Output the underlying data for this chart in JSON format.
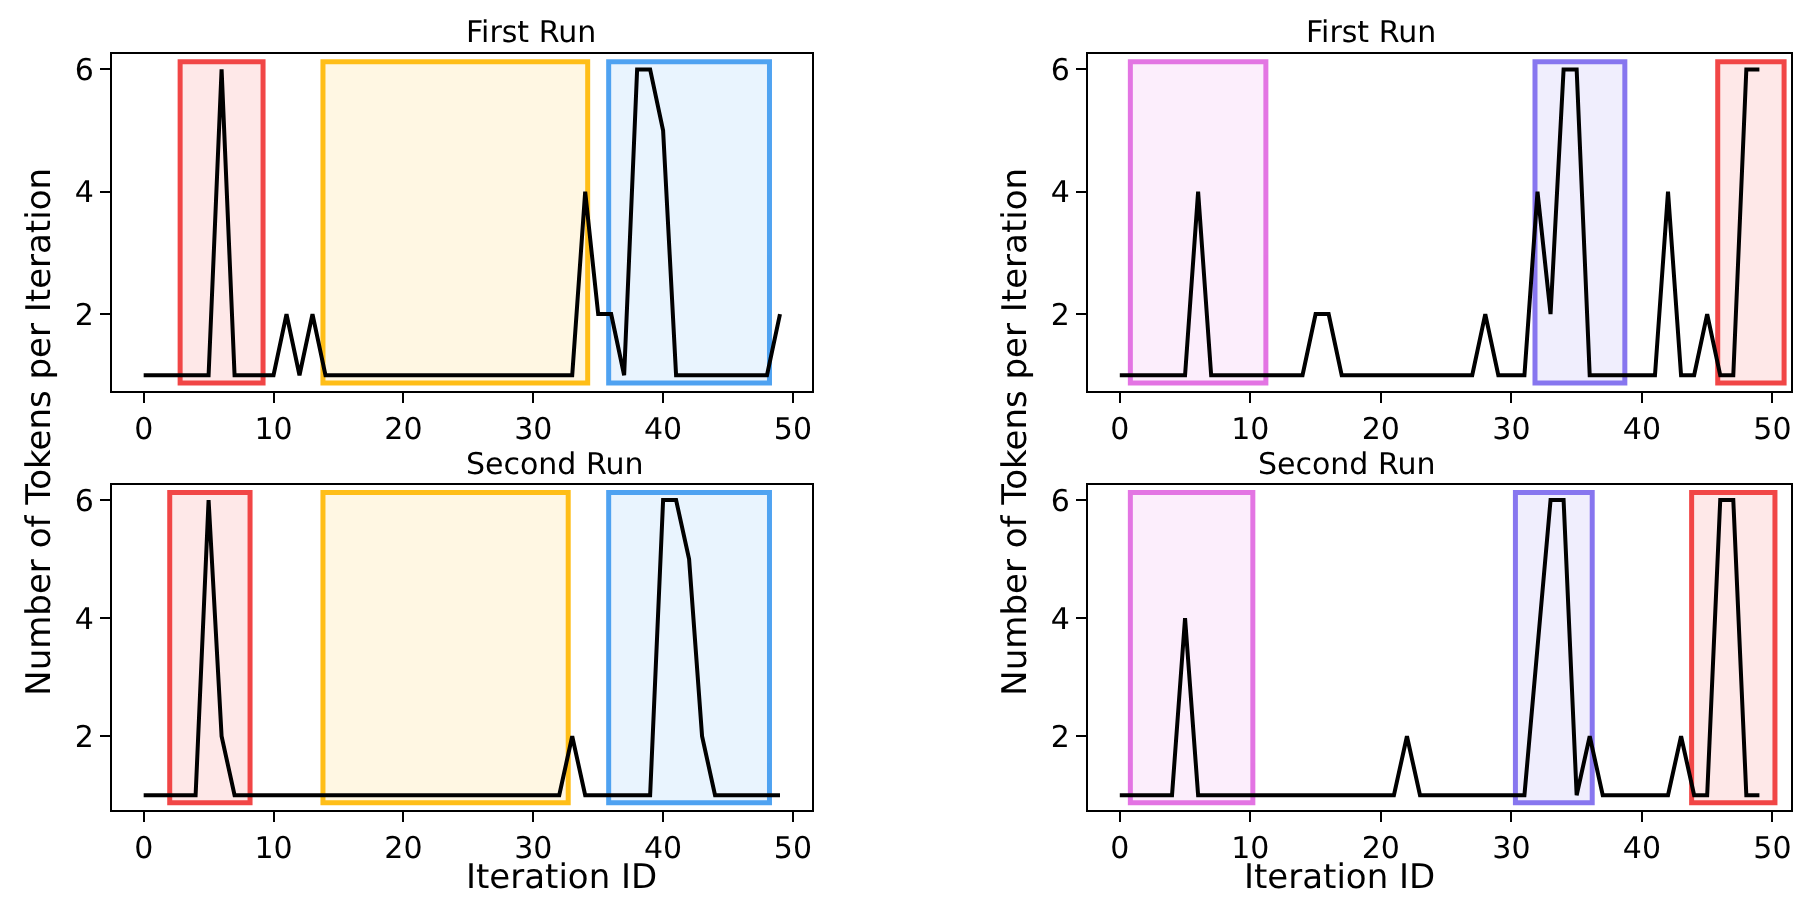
{
  "chart_data": [
    {
      "type": "line",
      "title": "First Run",
      "ylabel": "Number of Tokens per Iteration",
      "x": [
        0,
        1,
        2,
        3,
        4,
        5,
        6,
        7,
        8,
        9,
        10,
        11,
        12,
        13,
        14,
        15,
        16,
        17,
        18,
        19,
        20,
        21,
        22,
        23,
        24,
        25,
        26,
        27,
        28,
        29,
        30,
        31,
        32,
        33,
        34,
        35,
        36,
        37,
        38,
        39,
        40,
        41,
        42,
        43,
        44,
        45,
        46,
        47,
        48,
        49
      ],
      "xlim": [
        -2.45,
        51.45
      ],
      "xticks": [
        0,
        10,
        20,
        30,
        40,
        50
      ],
      "ylim": [
        0.75,
        6.25
      ],
      "yticks": [
        2,
        4,
        6
      ],
      "grid": false,
      "marker": "none",
      "line_style": "solid",
      "series": [
        {
          "color": "#000000",
          "values": [
            1,
            1,
            1,
            1,
            1,
            1,
            6,
            1,
            1,
            1,
            1,
            2,
            1,
            2,
            1,
            1,
            1,
            1,
            1,
            1,
            1,
            1,
            1,
            1,
            1,
            1,
            1,
            1,
            1,
            1,
            1,
            1,
            1,
            1,
            4,
            2,
            2,
            1,
            6,
            6,
            5,
            1,
            1,
            1,
            1,
            1,
            1,
            1,
            1,
            2
          ]
        }
      ],
      "bands": [
        {
          "axis": "x",
          "from": 3,
          "to": 9,
          "color": "#f03232"
        },
        {
          "axis": "x",
          "from": 14,
          "to": 34,
          "color": "#ffb700"
        },
        {
          "axis": "x",
          "from": 36,
          "to": 48,
          "color": "#3d99f0"
        }
      ]
    },
    {
      "type": "line",
      "title": "First Run",
      "ylabel": "Number of Tokens per Iteration",
      "x": [
        0,
        1,
        2,
        3,
        4,
        5,
        6,
        7,
        8,
        9,
        10,
        11,
        12,
        13,
        14,
        15,
        16,
        17,
        18,
        19,
        20,
        21,
        22,
        23,
        24,
        25,
        26,
        27,
        28,
        29,
        30,
        31,
        32,
        33,
        34,
        35,
        36,
        37,
        38,
        39,
        40,
        41,
        42,
        43,
        44,
        45,
        46,
        47,
        48,
        49
      ],
      "xlim": [
        -2.45,
        51.45
      ],
      "xticks": [
        0,
        10,
        20,
        30,
        40,
        50
      ],
      "ylim": [
        0.75,
        6.25
      ],
      "yticks": [
        2,
        4,
        6
      ],
      "grid": false,
      "marker": "none",
      "line_style": "solid",
      "series": [
        {
          "color": "#000000",
          "values": [
            1,
            1,
            1,
            1,
            1,
            1,
            4,
            1,
            1,
            1,
            1,
            1,
            1,
            1,
            1,
            2,
            2,
            1,
            1,
            1,
            1,
            1,
            1,
            1,
            1,
            1,
            1,
            1,
            2,
            1,
            1,
            1,
            4,
            2,
            6,
            6,
            1,
            1,
            1,
            1,
            1,
            1,
            4,
            1,
            1,
            2,
            1,
            1,
            6,
            6
          ]
        }
      ],
      "bands": [
        {
          "axis": "x",
          "from": 1,
          "to": 11,
          "color": "#e066e0"
        },
        {
          "axis": "x",
          "from": 32,
          "to": 38.5,
          "color": "#7b68ee"
        },
        {
          "axis": "x",
          "from": 46,
          "to": 50.7,
          "color": "#f03232"
        }
      ]
    },
    {
      "type": "line",
      "title": "Second Run",
      "xlabel": "Iteration ID",
      "x": [
        0,
        1,
        2,
        3,
        4,
        5,
        6,
        7,
        8,
        9,
        10,
        11,
        12,
        13,
        14,
        15,
        16,
        17,
        18,
        19,
        20,
        21,
        22,
        23,
        24,
        25,
        26,
        27,
        28,
        29,
        30,
        31,
        32,
        33,
        34,
        35,
        36,
        37,
        38,
        39,
        40,
        41,
        42,
        43,
        44,
        45,
        46,
        47,
        48,
        49
      ],
      "xlim": [
        -2.45,
        51.45
      ],
      "xticks": [
        0,
        10,
        20,
        30,
        40,
        50
      ],
      "ylim": [
        0.75,
        6.25
      ],
      "yticks": [
        2,
        4,
        6
      ],
      "grid": false,
      "marker": "none",
      "line_style": "solid",
      "series": [
        {
          "color": "#000000",
          "values": [
            1,
            1,
            1,
            1,
            1,
            6,
            2,
            1,
            1,
            1,
            1,
            1,
            1,
            1,
            1,
            1,
            1,
            1,
            1,
            1,
            1,
            1,
            1,
            1,
            1,
            1,
            1,
            1,
            1,
            1,
            1,
            1,
            1,
            2,
            1,
            1,
            1,
            1,
            1,
            1,
            6,
            6,
            5,
            2,
            1,
            1,
            1,
            1,
            1,
            1
          ]
        }
      ],
      "bands": [
        {
          "axis": "x",
          "from": 2.2,
          "to": 8,
          "color": "#f03232"
        },
        {
          "axis": "x",
          "from": 14,
          "to": 32.5,
          "color": "#ffb700"
        },
        {
          "axis": "x",
          "from": 36,
          "to": 48,
          "color": "#3d99f0"
        }
      ]
    },
    {
      "type": "line",
      "title": "Second Run",
      "xlabel": "Iteration ID",
      "x": [
        0,
        1,
        2,
        3,
        4,
        5,
        6,
        7,
        8,
        9,
        10,
        11,
        12,
        13,
        14,
        15,
        16,
        17,
        18,
        19,
        20,
        21,
        22,
        23,
        24,
        25,
        26,
        27,
        28,
        29,
        30,
        31,
        32,
        33,
        34,
        35,
        36,
        37,
        38,
        39,
        40,
        41,
        42,
        43,
        44,
        45,
        46,
        47,
        48,
        49
      ],
      "xlim": [
        -2.45,
        51.45
      ],
      "xticks": [
        0,
        10,
        20,
        30,
        40,
        50
      ],
      "ylim": [
        0.75,
        6.25
      ],
      "yticks": [
        2,
        4,
        6
      ],
      "grid": false,
      "marker": "none",
      "line_style": "solid",
      "series": [
        {
          "color": "#000000",
          "values": [
            1,
            1,
            1,
            1,
            1,
            4,
            1,
            1,
            1,
            1,
            1,
            1,
            1,
            1,
            1,
            1,
            1,
            1,
            1,
            1,
            1,
            1,
            2,
            1,
            1,
            1,
            1,
            1,
            1,
            1,
            1,
            1,
            3.5,
            6,
            6,
            1,
            2,
            1,
            1,
            1,
            1,
            1,
            1,
            2,
            1,
            1,
            6,
            6,
            1,
            1
          ]
        }
      ],
      "bands": [
        {
          "axis": "x",
          "from": 1,
          "to": 10,
          "color": "#e066e0"
        },
        {
          "axis": "x",
          "from": 30.5,
          "to": 36,
          "color": "#7b68ee"
        },
        {
          "axis": "x",
          "from": 44,
          "to": 50,
          "color": "#f03232"
        }
      ]
    }
  ]
}
